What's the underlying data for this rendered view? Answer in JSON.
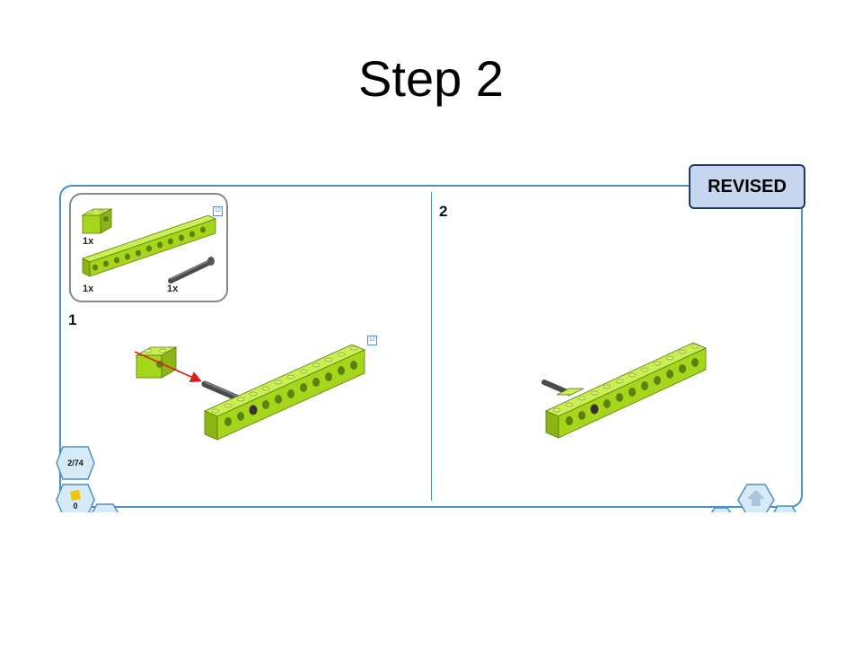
{
  "slide": {
    "title": "Step 2"
  },
  "badge": {
    "label": "REVISED"
  },
  "parts_list": {
    "items": [
      {
        "qty": "1x",
        "part": "brick-1x2-with-hole"
      },
      {
        "qty": "1x",
        "part": "technic-beam-12"
      },
      {
        "qty": "1x",
        "part": "axle-pin"
      }
    ],
    "length_tag": "12"
  },
  "panels": [
    {
      "step": "1",
      "length_tag": "12"
    },
    {
      "step": "2"
    }
  ],
  "nav": {
    "page_counter": "2/74",
    "badge_count": "0"
  },
  "colors": {
    "lime": "#a6d61b",
    "lime_dark": "#7da212",
    "frame_blue": "#4a90c8",
    "arrow_red": "#d62020",
    "badge_fill": "#c5d6ee",
    "badge_border": "#1f3b63"
  }
}
